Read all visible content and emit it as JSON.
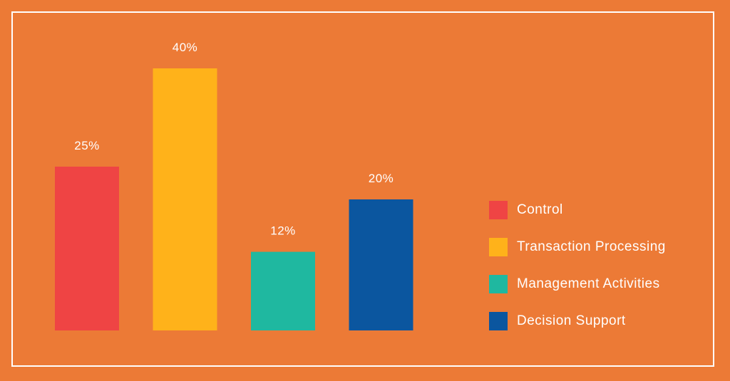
{
  "chart_data": {
    "type": "bar",
    "categories": [
      "Control",
      "Transaction Processing",
      "Management Activities",
      "Decision Support"
    ],
    "values": [
      25,
      40,
      12,
      20
    ],
    "value_labels": [
      "25%",
      "40%",
      "12%",
      "20%"
    ],
    "colors": [
      "#ef4444",
      "#ffb21a",
      "#1fb8a0",
      "#0b569f"
    ],
    "title": "",
    "xlabel": "",
    "ylabel": "",
    "ylim": [
      0,
      40
    ],
    "grid": false,
    "legend_position": "right"
  },
  "legend": {
    "items": [
      {
        "label": "Control",
        "color": "#ef4444"
      },
      {
        "label": "Transaction Processing",
        "color": "#ffb21a"
      },
      {
        "label": "Management Activities",
        "color": "#1fb8a0"
      },
      {
        "label": "Decision Support",
        "color": "#0b569f"
      }
    ]
  },
  "colors": {
    "background": "#ec7a36",
    "frame": "#ffffff",
    "text": "#ffffff"
  }
}
